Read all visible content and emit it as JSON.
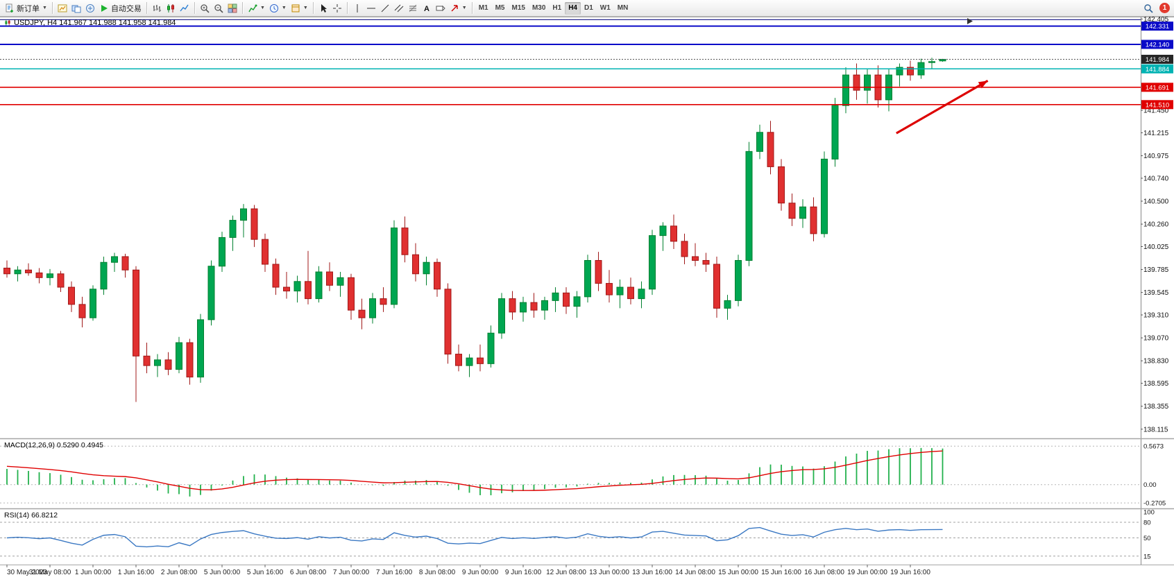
{
  "toolbar": {
    "groups": [
      {
        "items": [
          {
            "name": "new-order-button",
            "icon": "new-order-icon",
            "label": "新订单",
            "caret": true
          }
        ]
      },
      {
        "items": [
          {
            "name": "charts-button",
            "icon": "chart-window-icon"
          },
          {
            "name": "profiles-button",
            "icon": "profiles-icon"
          },
          {
            "name": "data-window-button",
            "icon": "data-window-icon"
          },
          {
            "name": "auto-trading-button",
            "icon": "play-icon",
            "label": "自动交易"
          }
        ]
      },
      {
        "items": [
          {
            "name": "bar-chart-button",
            "icon": "bar-chart-icon"
          },
          {
            "name": "candlestick-chart-button",
            "icon": "candlestick-icon"
          },
          {
            "name": "line-chart-button",
            "icon": "line-chart-icon"
          }
        ]
      },
      {
        "items": [
          {
            "name": "zoom-in-button",
            "icon": "zoom-in-icon"
          },
          {
            "name": "zoom-out-button",
            "icon": "zoom-out-icon"
          },
          {
            "name": "tile-windows-button",
            "icon": "tile-windows-icon"
          }
        ]
      },
      {
        "items": [
          {
            "name": "indicators-button",
            "icon": "indicators-icon",
            "caret": true
          },
          {
            "name": "periods-button",
            "icon": "clock-icon",
            "caret": true
          },
          {
            "name": "templates-button",
            "icon": "template-icon",
            "caret": true
          }
        ]
      },
      {
        "items": [
          {
            "name": "cursor-button",
            "icon": "cursor-icon"
          },
          {
            "name": "crosshair-button",
            "icon": "crosshair-icon"
          }
        ]
      },
      {
        "items": [
          {
            "name": "vertical-line-button",
            "icon": "vline-icon"
          },
          {
            "name": "horizontal-line-button",
            "icon": "hline-icon"
          },
          {
            "name": "trendline-button",
            "icon": "trendline-icon"
          },
          {
            "name": "equidistant-channel-button",
            "icon": "channel-icon"
          },
          {
            "name": "fibonacci-button",
            "icon": "fibonacci-icon"
          },
          {
            "name": "text-button",
            "icon": "text-icon"
          },
          {
            "name": "text-label-button",
            "icon": "label-icon"
          },
          {
            "name": "arrows-button",
            "icon": "arrow-tool-icon",
            "caret": true
          }
        ]
      }
    ],
    "timeframes": [
      "M1",
      "M5",
      "M15",
      "M30",
      "H1",
      "H4",
      "D1",
      "W1",
      "MN"
    ],
    "active_timeframe": "H4",
    "notification_badge": "1"
  },
  "chart": {
    "title": "USDJPY, H4 141.967 141.988 141.958 141.984"
  },
  "chart_data": {
    "type": "candlestick",
    "symbol": "USDJPY",
    "timeframe": "H4",
    "current_bar": {
      "open": "141.967",
      "high": "141.988",
      "low": "141.958",
      "close": "141.984"
    },
    "y_axis": {
      "max": 142.43,
      "min": 138.02
    },
    "y_ticks": [
      "142.405",
      "141.450",
      "141.215",
      "140.975",
      "140.740",
      "140.500",
      "140.260",
      "140.025",
      "139.785",
      "139.545",
      "139.310",
      "139.070",
      "138.830",
      "138.595",
      "138.355",
      "138.115"
    ],
    "ohlc": [
      [
        139.8,
        139.88,
        139.7,
        139.74
      ],
      [
        139.74,
        139.82,
        139.66,
        139.78
      ],
      [
        139.78,
        139.85,
        139.72,
        139.75
      ],
      [
        139.75,
        139.8,
        139.64,
        139.7
      ],
      [
        139.7,
        139.79,
        139.62,
        139.74
      ],
      [
        139.74,
        139.77,
        139.55,
        139.6
      ],
      [
        139.6,
        139.66,
        139.34,
        139.42
      ],
      [
        139.42,
        139.5,
        139.18,
        139.28
      ],
      [
        139.28,
        139.62,
        139.25,
        139.58
      ],
      [
        139.58,
        139.92,
        139.52,
        139.86
      ],
      [
        139.86,
        139.96,
        139.76,
        139.92
      ],
      [
        139.92,
        139.95,
        139.7,
        139.78
      ],
      [
        139.78,
        139.82,
        138.4,
        138.88
      ],
      [
        138.88,
        139.02,
        138.7,
        138.78
      ],
      [
        138.78,
        138.9,
        138.66,
        138.84
      ],
      [
        138.84,
        138.92,
        138.68,
        138.74
      ],
      [
        138.74,
        139.08,
        138.7,
        139.02
      ],
      [
        139.02,
        139.06,
        138.58,
        138.66
      ],
      [
        138.66,
        139.32,
        138.6,
        139.26
      ],
      [
        139.26,
        139.88,
        139.2,
        139.82
      ],
      [
        139.82,
        140.18,
        139.76,
        140.12
      ],
      [
        140.12,
        140.35,
        139.98,
        140.3
      ],
      [
        140.3,
        140.47,
        140.12,
        140.42
      ],
      [
        140.42,
        140.46,
        140.02,
        140.1
      ],
      [
        140.1,
        140.16,
        139.76,
        139.84
      ],
      [
        139.84,
        139.9,
        139.52,
        139.6
      ],
      [
        139.6,
        139.76,
        139.48,
        139.56
      ],
      [
        139.56,
        139.72,
        139.44,
        139.66
      ],
      [
        139.66,
        139.98,
        139.42,
        139.48
      ],
      [
        139.48,
        139.82,
        139.44,
        139.76
      ],
      [
        139.76,
        139.86,
        139.56,
        139.62
      ],
      [
        139.62,
        139.76,
        139.5,
        139.7
      ],
      [
        139.7,
        139.74,
        139.26,
        139.36
      ],
      [
        139.36,
        139.48,
        139.16,
        139.28
      ],
      [
        139.28,
        139.54,
        139.22,
        139.48
      ],
      [
        139.48,
        139.6,
        139.34,
        139.42
      ],
      [
        139.42,
        140.3,
        139.38,
        140.22
      ],
      [
        140.22,
        140.34,
        139.86,
        139.94
      ],
      [
        139.94,
        140.06,
        139.66,
        139.74
      ],
      [
        139.74,
        139.92,
        139.62,
        139.86
      ],
      [
        139.86,
        139.9,
        139.5,
        139.58
      ],
      [
        139.58,
        139.64,
        138.8,
        138.9
      ],
      [
        138.9,
        139.0,
        138.72,
        138.78
      ],
      [
        138.78,
        138.9,
        138.66,
        138.86
      ],
      [
        138.86,
        139.0,
        138.72,
        138.8
      ],
      [
        138.8,
        139.2,
        138.76,
        139.12
      ],
      [
        139.12,
        139.54,
        139.06,
        139.48
      ],
      [
        139.48,
        139.56,
        139.26,
        139.34
      ],
      [
        139.34,
        139.5,
        139.24,
        139.44
      ],
      [
        139.44,
        139.54,
        139.28,
        139.36
      ],
      [
        139.36,
        139.5,
        139.26,
        139.46
      ],
      [
        139.46,
        139.6,
        139.34,
        139.54
      ],
      [
        139.54,
        139.6,
        139.32,
        139.4
      ],
      [
        139.4,
        139.56,
        139.28,
        139.5
      ],
      [
        139.5,
        139.94,
        139.44,
        139.88
      ],
      [
        139.88,
        139.97,
        139.56,
        139.64
      ],
      [
        139.64,
        139.78,
        139.44,
        139.52
      ],
      [
        139.52,
        139.68,
        139.38,
        139.6
      ],
      [
        139.6,
        139.7,
        139.42,
        139.48
      ],
      [
        139.48,
        139.66,
        139.38,
        139.58
      ],
      [
        139.58,
        140.2,
        139.52,
        140.14
      ],
      [
        140.14,
        140.28,
        139.98,
        140.24
      ],
      [
        140.24,
        140.36,
        140.0,
        140.08
      ],
      [
        140.08,
        140.16,
        139.84,
        139.92
      ],
      [
        139.92,
        140.06,
        139.82,
        139.88
      ],
      [
        139.88,
        139.96,
        139.76,
        139.84
      ],
      [
        139.84,
        139.92,
        139.28,
        139.38
      ],
      [
        139.38,
        139.52,
        139.26,
        139.46
      ],
      [
        139.46,
        139.94,
        139.4,
        139.88
      ],
      [
        139.88,
        141.12,
        139.82,
        141.02
      ],
      [
        141.02,
        141.3,
        140.94,
        141.22
      ],
      [
        141.22,
        141.34,
        140.78,
        140.86
      ],
      [
        140.86,
        140.94,
        140.4,
        140.48
      ],
      [
        140.48,
        140.58,
        140.24,
        140.32
      ],
      [
        140.32,
        140.52,
        140.22,
        140.44
      ],
      [
        140.44,
        140.54,
        140.08,
        140.16
      ],
      [
        140.16,
        141.02,
        140.12,
        140.94
      ],
      [
        140.94,
        141.58,
        140.86,
        141.5
      ],
      [
        141.5,
        141.9,
        141.42,
        141.82
      ],
      [
        141.82,
        141.94,
        141.56,
        141.66
      ],
      [
        141.66,
        141.88,
        141.52,
        141.82
      ],
      [
        141.82,
        141.92,
        141.48,
        141.56
      ],
      [
        141.56,
        141.88,
        141.44,
        141.82
      ],
      [
        141.82,
        141.94,
        141.7,
        141.9
      ],
      [
        141.9,
        141.97,
        141.76,
        141.82
      ],
      [
        141.82,
        141.99,
        141.78,
        141.95
      ],
      [
        141.95,
        142.0,
        141.88,
        141.96
      ],
      [
        141.967,
        141.988,
        141.958,
        141.984
      ]
    ],
    "time_labels": [
      {
        "i": 0,
        "t": "30 May 2023"
      },
      {
        "i": 4,
        "t": "31 May 08:00"
      },
      {
        "i": 8,
        "t": "1 Jun 00:00"
      },
      {
        "i": 12,
        "t": "1 Jun 16:00"
      },
      {
        "i": 16,
        "t": "2 Jun 08:00"
      },
      {
        "i": 20,
        "t": "5 Jun 00:00"
      },
      {
        "i": 24,
        "t": "5 Jun 16:00"
      },
      {
        "i": 28,
        "t": "6 Jun 08:00"
      },
      {
        "i": 32,
        "t": "7 Jun 00:00"
      },
      {
        "i": 36,
        "t": "7 Jun 16:00"
      },
      {
        "i": 40,
        "t": "8 Jun 08:00"
      },
      {
        "i": 44,
        "t": "9 Jun 00:00"
      },
      {
        "i": 48,
        "t": "9 Jun 16:00"
      },
      {
        "i": 52,
        "t": "12 Jun 08:00"
      },
      {
        "i": 56,
        "t": "13 Jun 00:00"
      },
      {
        "i": 60,
        "t": "13 Jun 16:00"
      },
      {
        "i": 64,
        "t": "14 Jun 08:00"
      },
      {
        "i": 68,
        "t": "15 Jun 00:00"
      },
      {
        "i": 72,
        "t": "15 Jun 16:00"
      },
      {
        "i": 76,
        "t": "16 Jun 08:00"
      },
      {
        "i": 80,
        "t": "19 Jun 00:00"
      },
      {
        "i": 84,
        "t": "19 Jun 16:00"
      }
    ],
    "price_lines": [
      {
        "label": "",
        "value": 142.398,
        "color": "#2b2b8f",
        "width": 1.2
      },
      {
        "label": "142.331",
        "value": 142.331,
        "color": "#0a0ac8",
        "width": 2
      },
      {
        "label": "142.140",
        "value": 142.14,
        "color": "#0a0ac8",
        "width": 2
      },
      {
        "label": "141.884",
        "value": 141.884,
        "color": "#00b3b3",
        "width": 1.6
      },
      {
        "label": "141.691",
        "value": 141.691,
        "color": "#e00000",
        "width": 1.6
      },
      {
        "label": "141.510",
        "value": 141.51,
        "color": "#e00000",
        "width": 1.6
      }
    ],
    "current_price_line": {
      "label": "141.984",
      "value": 141.984,
      "badge_color": "#262626",
      "line_color": "#555555"
    },
    "trend_arrow": {
      "from": {
        "i": 82.7,
        "price": 141.21
      },
      "to": {
        "i": 91.2,
        "price": 141.76
      },
      "color": "#dd0000"
    },
    "colors": {
      "bull": "#00a651",
      "bull_border": "#00802f",
      "bear": "#e03030",
      "bear_border": "#a01818",
      "macd_hist": "#22b14c",
      "macd_signal": "#e00000",
      "rsi_line": "#3a78c3"
    },
    "macd": {
      "label": "MACD(12,26,9) 0.5290 0.4945",
      "params": [
        12,
        26,
        9
      ],
      "main_value": "0.5290",
      "signal_value": "0.4945",
      "scale": [
        {
          "label": "0.5673",
          "value": 0.5673
        },
        {
          "label": "0.00",
          "value": 0
        },
        {
          "label": "-0.2705",
          "value": -0.2705
        }
      ]
    },
    "rsi": {
      "label": "RSI(14) 66.8212",
      "period": 14,
      "value": "66.8212",
      "levels": [
        {
          "label": "100",
          "value": 100,
          "line": false
        },
        {
          "label": "80",
          "value": 80,
          "line": true
        },
        {
          "label": "50",
          "value": 50,
          "line": true
        },
        {
          "label": "15",
          "value": 15,
          "line": true
        }
      ]
    }
  }
}
